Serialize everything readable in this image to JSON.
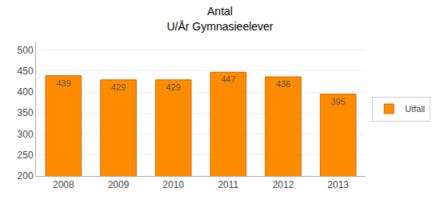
{
  "chart_data": {
    "type": "bar",
    "title": "Antal\nU/År Gymnasieelever",
    "categories": [
      "2008",
      "2009",
      "2010",
      "2011",
      "2012",
      "2013"
    ],
    "series": [
      {
        "name": "Utfall",
        "color": "#FF8C00",
        "values": [
          439,
          429,
          429,
          447,
          436,
          395
        ]
      }
    ],
    "ylim": [
      200,
      520
    ],
    "yticks": [
      200,
      250,
      300,
      350,
      400,
      450,
      500
    ],
    "grid": true,
    "legend": "right",
    "data_labels": true
  }
}
